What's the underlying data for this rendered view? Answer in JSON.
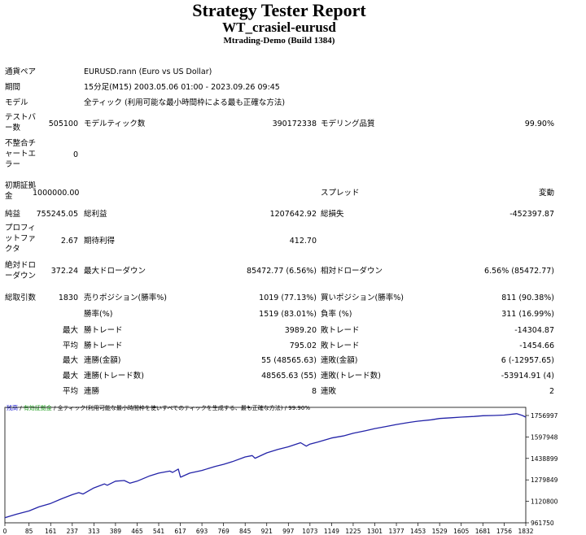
{
  "header": {
    "title": "Strategy Tester Report",
    "ea_name": "WT_crasiel-eurusd",
    "server": "Mtrading-Demo (Build 1384)"
  },
  "info": {
    "symbol_label": "通貨ペア",
    "symbol_value": "EURUSD.rann (Euro vs US Dollar)",
    "period_label": "期間",
    "period_value": "15分足(M15) 2003.05.06 01:00 - 2023.09.26 09:45",
    "model_label": "モデル",
    "model_value": "全ティック (利用可能な最小時間枠による最も正確な方法)"
  },
  "stats": {
    "bars_label": "テストバー数",
    "bars_value": "505100",
    "ticks_label": "モデルティック数",
    "ticks_value": "390172338",
    "quality_label": "モデリング品質",
    "quality_value": "99.90%",
    "mismatch_label": "不整合チャートエラー",
    "mismatch_value": "0",
    "deposit_label": "初期証拠金",
    "deposit_value": "1000000.00",
    "spread_label": "スプレッド",
    "spread_value": "変動",
    "net_label": "純益",
    "net_value": "755245.05",
    "gross_profit_label": "総利益",
    "gross_profit_value": "1207642.92",
    "gross_loss_label": "総損失",
    "gross_loss_value": "-452397.87",
    "pf_label": "プロフィットファクタ",
    "pf_value": "2.67",
    "payoff_label": "期待利得",
    "payoff_value": "412.70",
    "abs_dd_label": "絶対ドローダウン",
    "abs_dd_value": "372.24",
    "max_dd_label": "最大ドローダウン",
    "max_dd_value": "85472.77 (6.56%)",
    "rel_dd_label": "相対ドローダウン",
    "rel_dd_value": "6.56% (85472.77)",
    "trades_label": "総取引数",
    "trades_value": "1830",
    "short_label": "売りポジション(勝率%)",
    "short_value": "1019 (77.13%)",
    "long_label": "買いポジション(勝率%)",
    "long_value": "811 (90.38%)",
    "win_pct_label": "勝率(%)",
    "win_pct_value": "1519 (83.01%)",
    "loss_pct_label": "負率 (%)",
    "loss_pct_value": "311 (16.99%)",
    "max_label": "最大",
    "avg_label": "平均",
    "largest_win_label": "勝トレード",
    "largest_win_value": "3989.20",
    "largest_loss_label": "敗トレード",
    "largest_loss_value": "-14304.87",
    "avg_win_label": "勝トレード",
    "avg_win_value": "795.02",
    "avg_loss_label": "敗トレード",
    "avg_loss_value": "-1454.66",
    "cons_wins_label": "連勝(金額)",
    "cons_wins_value": "55 (48565.63)",
    "cons_losses_label": "連敗(金額)",
    "cons_losses_value": "6 (-12957.65)",
    "cons_profit_label": "連勝(トレード数)",
    "cons_profit_value": "48565.63 (55)",
    "cons_loss_label": "連敗(トレード数)",
    "cons_loss_value": "-53914.91 (4)",
    "avg_wins_label": "連勝",
    "avg_wins_value": "8",
    "avg_losses_label": "連敗",
    "avg_losses_value": "2"
  },
  "chart_header": {
    "balance": "残高",
    "sep1": " / ",
    "balance_equity": "有効証拠金",
    "sep2": " / ",
    "model": "全ティック(利用可能な最小時間枠を使いすべてのティックを生成する、最も正確な方法)",
    "sep3": " / ",
    "quality": "99.90%"
  },
  "colors": {
    "line": "#2323a8",
    "axis": "#000000",
    "label_blue": "#1010d0",
    "label_green": "#109a10",
    "panel": "#ffffff"
  },
  "chart_data": {
    "type": "line",
    "x_ticks": [
      "0",
      "85",
      "161",
      "237",
      "313",
      "389",
      "465",
      "541",
      "617",
      "693",
      "769",
      "845",
      "921",
      "997",
      "1073",
      "1149",
      "1225",
      "1301",
      "1377",
      "1453",
      "1529",
      "1605",
      "1681",
      "1756",
      "1832"
    ],
    "y_ticks": [
      "1756997",
      "1597948",
      "1438899",
      "1279849",
      "1120800",
      "961750"
    ],
    "ylim": [
      961750,
      1756997
    ],
    "xlim": [
      0,
      1832
    ],
    "series": [
      {
        "x": [
          0,
          40,
          85,
          120,
          161,
          200,
          237,
          260,
          275,
          313,
          350,
          360,
          389,
          420,
          440,
          465,
          510,
          541,
          580,
          590,
          610,
          617,
          618,
          650,
          693,
          740,
          769,
          800,
          845,
          870,
          880,
          921,
          960,
          997,
          1040,
          1060,
          1073,
          1100,
          1149,
          1190,
          1225,
          1270,
          1301,
          1340,
          1377,
          1420,
          1453,
          1500,
          1529,
          1570,
          1605,
          1650,
          1681,
          1720,
          1756,
          1800,
          1820,
          1832
        ],
        "y": [
          1000000,
          1025000,
          1050000,
          1080000,
          1105000,
          1140000,
          1170000,
          1185000,
          1175000,
          1220000,
          1250000,
          1240000,
          1270000,
          1275000,
          1255000,
          1270000,
          1310000,
          1330000,
          1345000,
          1335000,
          1360000,
          1305000,
          1300000,
          1330000,
          1350000,
          1380000,
          1395000,
          1415000,
          1450000,
          1460000,
          1440000,
          1480000,
          1505000,
          1525000,
          1555000,
          1530000,
          1545000,
          1560000,
          1590000,
          1605000,
          1625000,
          1645000,
          1660000,
          1675000,
          1690000,
          1705000,
          1715000,
          1725000,
          1735000,
          1740000,
          1745000,
          1750000,
          1755000,
          1757000,
          1760000,
          1770000,
          1757000,
          1745000
        ]
      }
    ]
  }
}
